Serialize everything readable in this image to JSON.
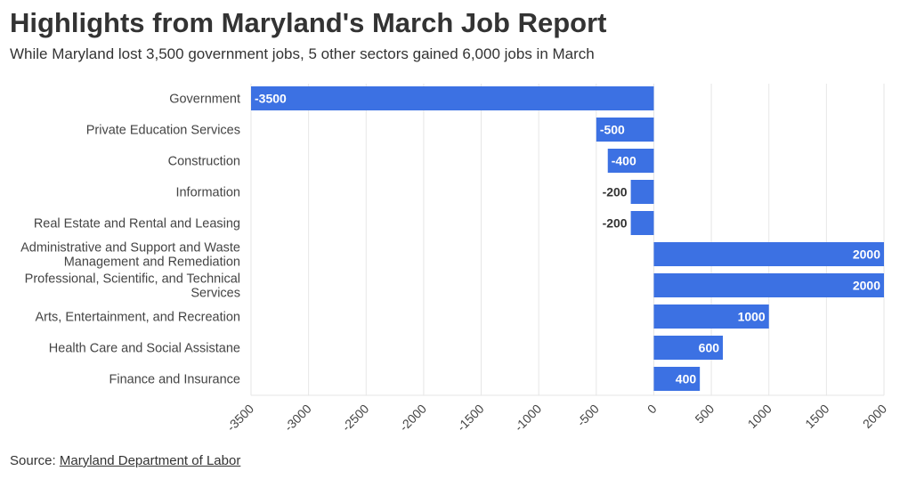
{
  "title": "Highlights from Maryland's March Job Report",
  "subtitle": "While Maryland lost 3,500 government jobs, 5 other sectors gained 6,000 jobs in March",
  "source": {
    "prefix": "Source: ",
    "link_text": "Maryland Department of Labor"
  },
  "colors": {
    "bar": "#3c71e3",
    "grid": "#e6e6e6",
    "label_inside": "#ffffff",
    "label_outside": "#333333"
  },
  "chart_data": {
    "type": "bar",
    "orientation": "horizontal",
    "categories": [
      "Government",
      "Private Education Services",
      "Construction",
      "Information",
      "Real Estate and Rental and Leasing",
      "Administrative and Support and Waste Management and Remediation",
      "Professional, Scientific, and Technical Services",
      "Arts, Entertainment, and Recreation",
      "Health Care and Social Assistane",
      "Finance and Insurance"
    ],
    "values": [
      -3500,
      -500,
      -400,
      -200,
      -200,
      2000,
      2000,
      1000,
      600,
      400
    ],
    "xlim": [
      -3500,
      2000
    ],
    "xticks": [
      -3500,
      -3000,
      -2500,
      -2000,
      -1500,
      -1000,
      -500,
      0,
      500,
      1000,
      1500,
      2000
    ],
    "grid": true,
    "data_labels": true
  }
}
